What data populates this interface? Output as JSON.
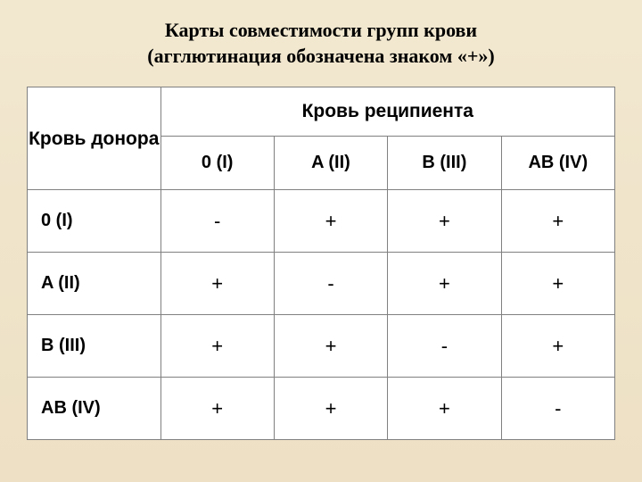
{
  "title_line1": "Карты совместимости групп крови",
  "title_line2": "(агглютинация обозначена знаком «+»)",
  "table": {
    "donor_header": "Кровь донора",
    "recipient_header": "Кровь реципиента",
    "columns": [
      "0 (I)",
      "A (II)",
      "B (III)",
      "AB (IV)"
    ],
    "row_labels": [
      "0 (I)",
      "A (II)",
      "B (III)",
      "AB (IV)"
    ],
    "rows": [
      [
        "-",
        "+",
        "+",
        "+"
      ],
      [
        "+",
        "-",
        "+",
        "+"
      ],
      [
        "+",
        "+",
        "-",
        "+"
      ],
      [
        "+",
        "+",
        "+",
        "-"
      ]
    ]
  },
  "style": {
    "background_gradient_top": "#f2e8d0",
    "background_gradient_bottom": "#ede0c4",
    "table_background": "#ffffff",
    "border_color": "#808080",
    "text_color": "#000000",
    "title_fontsize": 22,
    "header_fontsize": 21,
    "cell_fontsize": 22
  }
}
